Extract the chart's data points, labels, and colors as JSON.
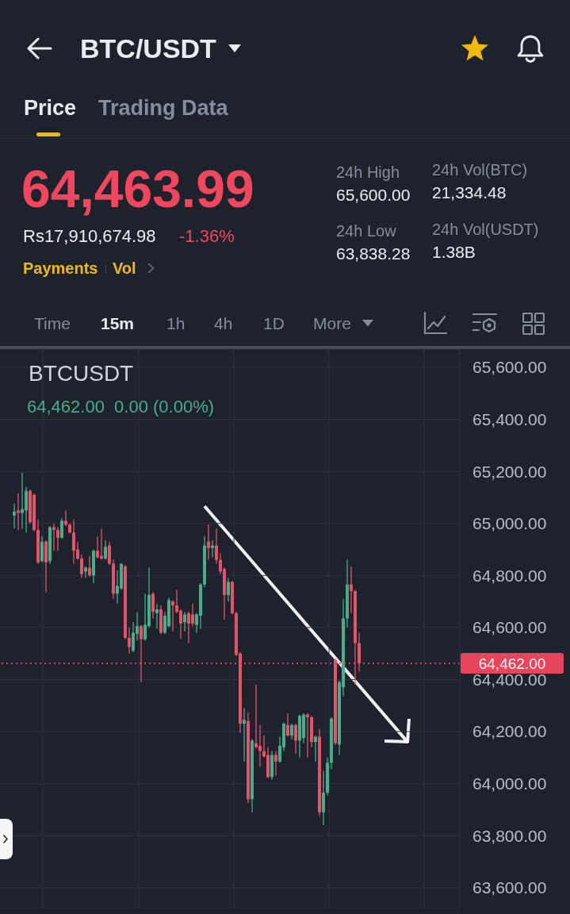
{
  "chart_data": [
    {
      "type": "other",
      "title": "BTC/USDT",
      "annotations": [
        "Price",
        "Trading Data",
        "64,463.99",
        "Rs17,910,674.98",
        "-1.36%",
        "Payments",
        "Vol",
        "24h High",
        "65,600.00",
        "24h Vol(BTC)",
        "21,334.48",
        "24h Low",
        "63,838.28",
        "24h Vol(USDT)",
        "1.38B",
        "Time",
        "15m",
        "1h",
        "4h",
        "1D",
        "More"
      ]
    },
    {
      "type": "candlestick",
      "title": "BTCUSDT",
      "subtitle": "64,462.00  0.00 (0.00%)",
      "categories": [
        null,
        null,
        null,
        null,
        null,
        null,
        null,
        null,
        null,
        null,
        null,
        null,
        null,
        null,
        null,
        null,
        null,
        null,
        null,
        null,
        null,
        null,
        null,
        null,
        null,
        null,
        null,
        null,
        null,
        null,
        null,
        null,
        null,
        null,
        null,
        null,
        null,
        null,
        null,
        null,
        null,
        null,
        null,
        null,
        null,
        null,
        null,
        null,
        null,
        null,
        null,
        null,
        null,
        null,
        null,
        null,
        null,
        null,
        null,
        null,
        null,
        null,
        null,
        null,
        null,
        null,
        null,
        null,
        null,
        null,
        null,
        null,
        null,
        null,
        null,
        null,
        null,
        null,
        null,
        null,
        null,
        null,
        null,
        null,
        null,
        null,
        null,
        null,
        null,
        null,
        null,
        null,
        null,
        null,
        null,
        null,
        null,
        null,
        null,
        null,
        null,
        null,
        null,
        null,
        null,
        null,
        null,
        null,
        null,
        null,
        null,
        null,
        null,
        null,
        null,
        null
      ],
      "ohlc": [
        null,
        null,
        null,
        [
          65030,
          65075,
          64980,
          65045
        ],
        [
          65050,
          65115,
          64975,
          65040
        ],
        [
          65040,
          65195,
          64980,
          65055
        ],
        [
          65050,
          65140,
          64965,
          65125
        ],
        [
          65125,
          65130,
          65000,
          65005
        ],
        [
          65110,
          65115,
          64970,
          64975
        ],
        [
          64975,
          65015,
          64845,
          64850
        ],
        [
          64855,
          64950,
          64850,
          64930
        ],
        [
          64930,
          64935,
          64735,
          64850
        ],
        [
          64855,
          64990,
          64845,
          64985
        ],
        [
          64985,
          65000,
          64895,
          64975
        ],
        [
          64975,
          64985,
          64895,
          64945
        ],
        [
          64945,
          65020,
          64940,
          65010
        ],
        [
          65010,
          65050,
          64990,
          64995
        ],
        [
          64995,
          65000,
          64960,
          64965
        ],
        [
          64965,
          65015,
          64845,
          64895
        ],
        [
          64900,
          64930,
          64860,
          64865
        ],
        [
          64865,
          64880,
          64790,
          64805
        ],
        [
          64815,
          64835,
          64790,
          64830
        ],
        [
          64830,
          64875,
          64795,
          64800
        ],
        [
          64800,
          64900,
          64770,
          64895
        ],
        [
          64895,
          64950,
          64865,
          64870
        ],
        [
          64875,
          64980,
          64860,
          64865
        ],
        [
          64865,
          64935,
          64860,
          64910
        ],
        [
          64915,
          64930,
          64840,
          64845
        ],
        [
          64845,
          64860,
          64710,
          64730
        ],
        [
          64730,
          64820,
          64690,
          64760
        ],
        [
          64750,
          64845,
          64745,
          64845
        ],
        [
          64835,
          64840,
          64555,
          64560
        ],
        [
          64560,
          64600,
          64500,
          64525
        ],
        [
          64510,
          64620,
          64505,
          64580
        ],
        [
          64575,
          64660,
          64550,
          64605
        ],
        [
          64605,
          64610,
          64390,
          64555
        ],
        [
          64555,
          64730,
          64550,
          64610
        ],
        [
          64605,
          64830,
          64600,
          64725
        ],
        [
          64730,
          64735,
          64635,
          64660
        ],
        [
          64655,
          64690,
          64595,
          64670
        ],
        [
          64670,
          64685,
          64575,
          64580
        ],
        [
          64580,
          64660,
          64575,
          64645
        ],
        [
          64605,
          64715,
          64600,
          64705
        ],
        [
          64700,
          64705,
          64585,
          64685
        ],
        [
          64685,
          64745,
          64655,
          64660
        ],
        [
          64665,
          64670,
          64555,
          64615
        ],
        [
          64620,
          64660,
          64585,
          64650
        ],
        [
          64655,
          64660,
          64540,
          64615
        ],
        [
          64650,
          64690,
          64605,
          64615
        ],
        [
          64610,
          64655,
          64580,
          64650
        ],
        [
          64645,
          64770,
          64595,
          64765
        ],
        [
          64765,
          64950,
          64755,
          64915
        ],
        [
          64930,
          64995,
          64860,
          64905
        ],
        [
          64905,
          64935,
          64870,
          64915
        ],
        [
          64915,
          64980,
          64845,
          64860
        ],
        [
          64860,
          64885,
          64805,
          64815
        ],
        [
          64825,
          64830,
          64630,
          64725
        ],
        [
          64725,
          64790,
          64700,
          64775
        ],
        [
          64775,
          64780,
          64650,
          64655
        ],
        [
          64655,
          64660,
          64490,
          64495
        ],
        [
          64500,
          64505,
          64195,
          64230
        ],
        [
          64230,
          64290,
          64085,
          64245
        ],
        [
          64240,
          64275,
          63925,
          63940
        ],
        [
          63940,
          64170,
          63890,
          64165
        ],
        [
          64155,
          64380,
          64135,
          64140
        ],
        [
          64145,
          64225,
          64065,
          64125
        ],
        [
          64125,
          64185,
          64100,
          64105
        ],
        [
          64110,
          64140,
          64020,
          64025
        ],
        [
          64025,
          64125,
          64015,
          64110
        ],
        [
          64110,
          64125,
          64030,
          64085
        ],
        [
          64085,
          64180,
          64080,
          64145
        ],
        [
          64140,
          64235,
          64125,
          64230
        ],
        [
          64225,
          64270,
          64180,
          64185
        ],
        [
          64185,
          64230,
          64170,
          64225
        ],
        [
          64225,
          64230,
          64115,
          64165
        ],
        [
          64165,
          64265,
          64100,
          64260
        ],
        [
          64175,
          64270,
          64155,
          64265
        ],
        [
          64265,
          64270,
          64100,
          64255
        ],
        [
          64255,
          64260,
          64140,
          64160
        ],
        [
          64160,
          64185,
          64085,
          64180
        ],
        [
          64180,
          64210,
          63875,
          63890
        ],
        [
          63890,
          64050,
          63840,
          63965
        ],
        [
          63965,
          64100,
          63955,
          64080
        ],
        [
          64080,
          64255,
          64055,
          64250
        ],
        [
          64475,
          64480,
          64150,
          64155
        ],
        [
          64150,
          64395,
          64110,
          64390
        ],
        [
          64370,
          64710,
          64335,
          64635
        ],
        [
          64635,
          64860,
          64600,
          64765
        ],
        [
          64765,
          64835,
          64655,
          64740
        ],
        [
          64740,
          64745,
          64380,
          64540
        ],
        [
          64540,
          64580,
          64430,
          64462
        ],
        null,
        null,
        null,
        null,
        null,
        null,
        null,
        null,
        null,
        null,
        null,
        null,
        null,
        null,
        null,
        null,
        null,
        null,
        null,
        null,
        null,
        null,
        null,
        null,
        null
      ],
      "colors": [
        null,
        null,
        null,
        "#46ae88",
        "#e5536a",
        "#46ae88",
        "#46ae88",
        "#e5536a",
        "#e5536a",
        "#e5536a",
        "#46ae88",
        "#e5536a",
        "#46ae88",
        "#e5536a",
        "#e5536a",
        "#46ae88",
        "#e5536a",
        "#e5536a",
        "#e5536a",
        "#e5536a",
        "#e5536a",
        "#46ae88",
        "#e5536a",
        "#46ae88",
        "#e5536a",
        "#e5536a",
        "#46ae88",
        "#e5536a",
        "#e5536a",
        "#46ae88",
        "#46ae88",
        "#e5536a",
        "#e5536a",
        "#46ae88",
        "#46ae88",
        "#e5536a",
        "#46ae88",
        "#46ae88",
        "#e5536a",
        "#46ae88",
        "#e5536a",
        "#46ae88",
        "#46ae88",
        "#e5536a",
        "#e5536a",
        "#e5536a",
        "#46ae88",
        "#e5536a",
        "#e5536a",
        "#46ae88",
        "#46ae88",
        "#46ae88",
        "#e5536a",
        "#46ae88",
        "#e5536a",
        "#e5536a",
        "#e5536a",
        "#46ae88",
        "#e5536a",
        "#e5536a",
        "#e5536a",
        "#46ae88",
        "#e5536a",
        "#46ae88",
        "#e5536a",
        "#e5536a",
        "#e5536a",
        "#e5536a",
        "#46ae88",
        "#e5536a",
        "#46ae88",
        "#46ae88",
        "#e5536a",
        "#46ae88",
        "#e5536a",
        "#46ae88",
        "#46ae88",
        "#e5536a",
        "#e5536a",
        "#46ae88",
        "#e5536a",
        "#46ae88",
        "#46ae88",
        "#46ae88",
        "#e5536a",
        "#46ae88",
        "#46ae88",
        "#46ae88",
        "#e5536a",
        "#e5536a",
        "#e5536a",
        null,
        null,
        null,
        null,
        null,
        null,
        null,
        null,
        null,
        null,
        null,
        null,
        null,
        null,
        null,
        null,
        null,
        null,
        null,
        null,
        null,
        null,
        null,
        null,
        null
      ],
      "ylim": [
        63520,
        65670
      ],
      "yticks": [
        {
          "value": 63600,
          "label": "63,600.00"
        },
        {
          "value": 63800,
          "label": "63,800.00"
        },
        {
          "value": 64000,
          "label": "64,000.00"
        },
        {
          "value": 64200,
          "label": "64,200.00"
        },
        {
          "value": 64400,
          "label": "64,400.00"
        },
        {
          "value": 64600,
          "label": "64,600.00"
        },
        {
          "value": 64800,
          "label": "64,800.00"
        },
        {
          "value": 65000,
          "label": "65,000.00"
        },
        {
          "value": 65200,
          "label": "65,200.00"
        },
        {
          "value": 65400,
          "label": "65,400.00"
        },
        {
          "value": 65600,
          "label": "65,600.00"
        }
      ],
      "grid": true,
      "ref_lines": [
        {
          "axis": "y",
          "value": 64462,
          "label": "64,462.00",
          "color": "#e8455d",
          "line_style": "dotted"
        }
      ]
    }
  ]
}
